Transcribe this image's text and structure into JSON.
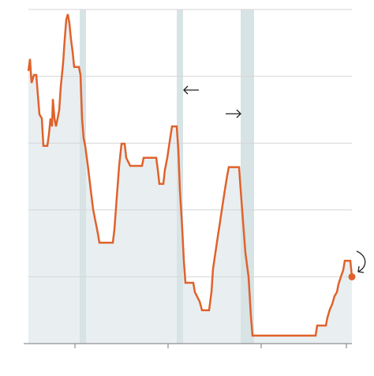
{
  "chart_data": {
    "type": "line",
    "x": [
      0,
      0.2,
      0.4,
      0.7,
      1.0,
      1.2,
      1.4,
      1.7,
      1.9,
      2.4,
      2.6,
      2.8,
      3.0,
      3.1,
      3.3,
      3.5,
      3.7,
      3.9,
      4.1,
      4.4,
      4.6,
      4.8,
      5.0,
      5.2,
      5.4,
      5.6,
      5.8,
      6.4,
      6.6,
      6.8,
      7.0,
      7.2,
      7.4,
      7.6,
      7.9,
      8.2,
      8.5,
      8.8,
      9.0,
      10.7,
      10.9,
      11.2,
      11.5,
      11.8,
      12.2,
      12.4,
      12.9,
      14.4,
      14.6,
      16.2,
      16.4,
      16.6,
      17.1,
      17.3,
      17.6,
      17.9,
      18.2,
      18.8,
      19.0,
      19.2,
      19.5,
      19.7,
      19.9,
      20.9,
      21.1,
      21.7,
      22.0,
      22.9,
      23.2,
      23.4,
      23.7,
      24.0,
      24.3,
      24.6,
      24.9,
      25.2,
      25.4,
      26.7,
      26.9,
      27.2,
      27.5,
      27.9,
      28.2,
      28.4,
      36.4,
      36.6,
      37.7,
      37.9,
      38.2,
      38.5,
      38.8,
      39.1,
      39.3,
      39.6,
      39.9,
      40.1,
      40.8,
      41.0
    ],
    "series": [
      {
        "color": "#e0622b",
        "values": [
          4.08,
          4.26,
          3.9,
          4.02,
          4.02,
          3.72,
          3.43,
          3.37,
          2.96,
          2.96,
          3.13,
          3.37,
          3.25,
          3.66,
          3.37,
          3.25,
          3.37,
          3.49,
          3.84,
          4.2,
          4.55,
          4.85,
          4.93,
          4.79,
          4.55,
          4.37,
          4.14,
          4.14,
          4.02,
          3.37,
          3.07,
          2.96,
          2.78,
          2.6,
          2.3,
          2.01,
          1.83,
          1.65,
          1.51,
          1.51,
          1.71,
          2.19,
          2.66,
          2.99,
          2.99,
          2.78,
          2.66,
          2.66,
          2.78,
          2.78,
          2.6,
          2.39,
          2.39,
          2.6,
          2.78,
          3.02,
          3.25,
          3.25,
          2.9,
          2.3,
          1.71,
          1.24,
          0.91,
          0.91,
          0.77,
          0.63,
          0.5,
          0.5,
          0.77,
          1.12,
          1.36,
          1.6,
          1.83,
          2.07,
          2.3,
          2.52,
          2.64,
          2.64,
          2.3,
          1.83,
          1.36,
          1.0,
          0.41,
          0.12,
          0.12,
          0.27,
          0.27,
          0.39,
          0.51,
          0.59,
          0.71,
          0.77,
          0.89,
          1.0,
          1.1,
          1.24,
          1.24,
          1.0
        ]
      }
    ],
    "area_color": "#e9eff1",
    "bands": [
      [
        6.5,
        7.3
      ],
      [
        18.8,
        19.6
      ],
      [
        26.9,
        28.6
      ]
    ],
    "band_color": "#d8e3e6",
    "xlim": [
      0,
      41
    ],
    "xticks": [
      5.9,
      17.7,
      29.5,
      40.3
    ],
    "ylim": [
      0,
      5
    ],
    "yticks": [
      0,
      1,
      2,
      3,
      4,
      5
    ],
    "grid": true
  }
}
